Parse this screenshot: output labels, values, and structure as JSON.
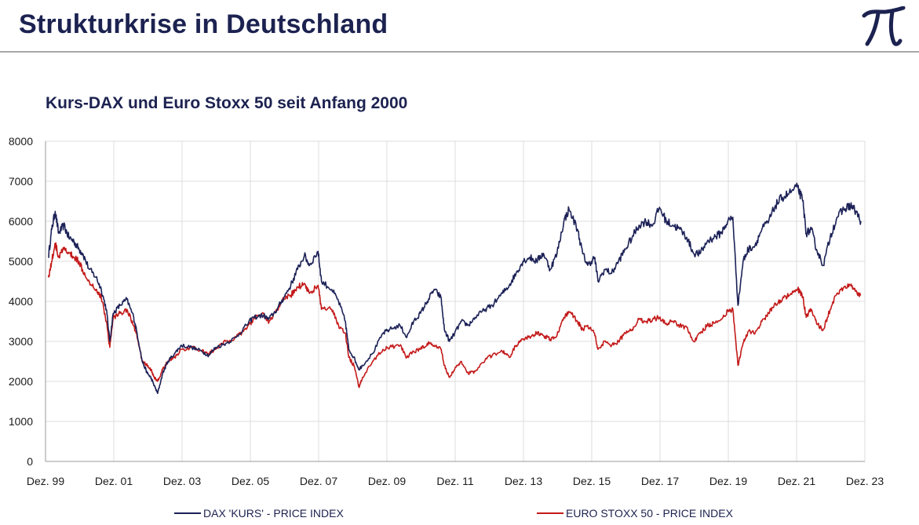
{
  "header": {
    "title": "Strukturkrise in Deutschland",
    "logo_icon": "pi-icon"
  },
  "colors": {
    "dax": "#1c2257",
    "stoxx": "#c41a1a",
    "grid": "#dcdcdc",
    "title": "#1c2250"
  },
  "chart_data": {
    "type": "line",
    "title": "Kurs-DAX und Euro Stoxx 50 seit Anfang 2000",
    "xlabel": "",
    "ylabel": "",
    "xlim": [
      1999.917,
      2023.917
    ],
    "ylim": [
      0,
      8000
    ],
    "y_ticks": [
      0,
      1000,
      2000,
      3000,
      4000,
      5000,
      6000,
      7000,
      8000
    ],
    "x_ticks": [
      {
        "x": 1999.917,
        "label": "Dez. 99"
      },
      {
        "x": 2001.917,
        "label": "Dez. 01"
      },
      {
        "x": 2003.917,
        "label": "Dez. 03"
      },
      {
        "x": 2005.917,
        "label": "Dez. 05"
      },
      {
        "x": 2007.917,
        "label": "Dez. 07"
      },
      {
        "x": 2009.917,
        "label": "Dez. 09"
      },
      {
        "x": 2011.917,
        "label": "Dez. 11"
      },
      {
        "x": 2013.917,
        "label": "Dez. 13"
      },
      {
        "x": 2015.917,
        "label": "Dez. 15"
      },
      {
        "x": 2017.917,
        "label": "Dez. 17"
      },
      {
        "x": 2019.917,
        "label": "Dez. 19"
      },
      {
        "x": 2021.917,
        "label": "Dez. 21"
      },
      {
        "x": 2023.917,
        "label": "Dez. 23"
      }
    ],
    "grid": true,
    "legend_position": "bottom",
    "series": [
      {
        "name": "DAX 'KURS' - PRICE INDEX",
        "color": "#1c2257",
        "points": [
          [
            2000.0,
            5100
          ],
          [
            2000.1,
            5800
          ],
          [
            2000.2,
            6250
          ],
          [
            2000.3,
            5700
          ],
          [
            2000.45,
            5900
          ],
          [
            2000.6,
            5600
          ],
          [
            2000.75,
            5500
          ],
          [
            2000.9,
            5300
          ],
          [
            2001.0,
            5200
          ],
          [
            2001.2,
            4800
          ],
          [
            2001.4,
            4600
          ],
          [
            2001.55,
            4300
          ],
          [
            2001.7,
            3800
          ],
          [
            2001.8,
            3000
          ],
          [
            2001.9,
            3700
          ],
          [
            2002.1,
            3900
          ],
          [
            2002.3,
            4050
          ],
          [
            2002.5,
            3600
          ],
          [
            2002.6,
            3200
          ],
          [
            2002.75,
            2500
          ],
          [
            2002.9,
            2200
          ],
          [
            2003.0,
            2100
          ],
          [
            2003.1,
            1900
          ],
          [
            2003.2,
            1700
          ],
          [
            2003.35,
            2200
          ],
          [
            2003.5,
            2500
          ],
          [
            2003.7,
            2700
          ],
          [
            2003.9,
            2900
          ],
          [
            2004.2,
            2850
          ],
          [
            2004.5,
            2750
          ],
          [
            2004.7,
            2650
          ],
          [
            2004.9,
            2850
          ],
          [
            2005.2,
            2950
          ],
          [
            2005.5,
            3100
          ],
          [
            2005.8,
            3400
          ],
          [
            2006.0,
            3600
          ],
          [
            2006.3,
            3650
          ],
          [
            2006.45,
            3550
          ],
          [
            2006.7,
            3800
          ],
          [
            2006.9,
            4100
          ],
          [
            2007.1,
            4400
          ],
          [
            2007.3,
            4800
          ],
          [
            2007.5,
            5150
          ],
          [
            2007.65,
            4900
          ],
          [
            2007.9,
            5250
          ],
          [
            2008.0,
            4500
          ],
          [
            2008.3,
            4300
          ],
          [
            2008.5,
            4000
          ],
          [
            2008.7,
            3500
          ],
          [
            2008.8,
            2800
          ],
          [
            2008.95,
            2600
          ],
          [
            2009.1,
            2300
          ],
          [
            2009.2,
            2400
          ],
          [
            2009.5,
            2700
          ],
          [
            2009.8,
            3200
          ],
          [
            2010.0,
            3300
          ],
          [
            2010.3,
            3400
          ],
          [
            2010.5,
            3100
          ],
          [
            2010.7,
            3500
          ],
          [
            2010.9,
            3700
          ],
          [
            2011.1,
            4000
          ],
          [
            2011.3,
            4300
          ],
          [
            2011.5,
            4100
          ],
          [
            2011.6,
            3300
          ],
          [
            2011.75,
            3000
          ],
          [
            2011.9,
            3200
          ],
          [
            2012.1,
            3500
          ],
          [
            2012.3,
            3400
          ],
          [
            2012.5,
            3600
          ],
          [
            2012.8,
            3800
          ],
          [
            2013.0,
            3900
          ],
          [
            2013.3,
            4200
          ],
          [
            2013.5,
            4400
          ],
          [
            2013.7,
            4700
          ],
          [
            2013.9,
            5000
          ],
          [
            2014.1,
            5100
          ],
          [
            2014.3,
            5000
          ],
          [
            2014.5,
            5200
          ],
          [
            2014.7,
            4800
          ],
          [
            2014.9,
            5200
          ],
          [
            2015.1,
            6000
          ],
          [
            2015.25,
            6300
          ],
          [
            2015.5,
            5800
          ],
          [
            2015.65,
            5200
          ],
          [
            2015.8,
            4900
          ],
          [
            2016.0,
            5100
          ],
          [
            2016.1,
            4500
          ],
          [
            2016.3,
            4800
          ],
          [
            2016.5,
            4700
          ],
          [
            2016.7,
            5000
          ],
          [
            2016.9,
            5300
          ],
          [
            2017.1,
            5600
          ],
          [
            2017.3,
            5900
          ],
          [
            2017.5,
            6000
          ],
          [
            2017.7,
            5900
          ],
          [
            2017.9,
            6350
          ],
          [
            2018.1,
            6000
          ],
          [
            2018.3,
            5900
          ],
          [
            2018.5,
            5800
          ],
          [
            2018.7,
            5600
          ],
          [
            2018.9,
            5200
          ],
          [
            2019.1,
            5200
          ],
          [
            2019.3,
            5500
          ],
          [
            2019.5,
            5600
          ],
          [
            2019.7,
            5700
          ],
          [
            2019.9,
            6000
          ],
          [
            2020.05,
            6100
          ],
          [
            2020.2,
            3900
          ],
          [
            2020.35,
            5000
          ],
          [
            2020.5,
            5300
          ],
          [
            2020.7,
            5400
          ],
          [
            2020.9,
            5800
          ],
          [
            2021.1,
            6000
          ],
          [
            2021.3,
            6400
          ],
          [
            2021.5,
            6600
          ],
          [
            2021.7,
            6700
          ],
          [
            2021.95,
            6850
          ],
          [
            2022.1,
            6500
          ],
          [
            2022.2,
            5700
          ],
          [
            2022.35,
            5800
          ],
          [
            2022.5,
            5300
          ],
          [
            2022.7,
            4900
          ],
          [
            2022.9,
            5600
          ],
          [
            2023.1,
            6100
          ],
          [
            2023.3,
            6300
          ],
          [
            2023.5,
            6400
          ],
          [
            2023.65,
            6250
          ],
          [
            2023.8,
            6000
          ]
        ]
      },
      {
        "name": "EURO STOXX 50 - PRICE INDEX",
        "color": "#c41a1a",
        "points": [
          [
            2000.0,
            4600
          ],
          [
            2000.1,
            5000
          ],
          [
            2000.2,
            5450
          ],
          [
            2000.3,
            5100
          ],
          [
            2000.45,
            5300
          ],
          [
            2000.6,
            5200
          ],
          [
            2000.75,
            5100
          ],
          [
            2000.9,
            5000
          ],
          [
            2001.0,
            4800
          ],
          [
            2001.2,
            4500
          ],
          [
            2001.4,
            4300
          ],
          [
            2001.55,
            4100
          ],
          [
            2001.7,
            3500
          ],
          [
            2001.8,
            2850
          ],
          [
            2001.9,
            3600
          ],
          [
            2002.1,
            3700
          ],
          [
            2002.3,
            3800
          ],
          [
            2002.5,
            3400
          ],
          [
            2002.6,
            3100
          ],
          [
            2002.75,
            2500
          ],
          [
            2002.9,
            2400
          ],
          [
            2003.0,
            2300
          ],
          [
            2003.1,
            2100
          ],
          [
            2003.2,
            2000
          ],
          [
            2003.35,
            2300
          ],
          [
            2003.5,
            2500
          ],
          [
            2003.7,
            2600
          ],
          [
            2003.9,
            2800
          ],
          [
            2004.2,
            2850
          ],
          [
            2004.5,
            2750
          ],
          [
            2004.7,
            2700
          ],
          [
            2004.9,
            2800
          ],
          [
            2005.2,
            3000
          ],
          [
            2005.5,
            3100
          ],
          [
            2005.8,
            3300
          ],
          [
            2006.0,
            3550
          ],
          [
            2006.3,
            3700
          ],
          [
            2006.45,
            3450
          ],
          [
            2006.7,
            3800
          ],
          [
            2006.9,
            4050
          ],
          [
            2007.1,
            4150
          ],
          [
            2007.3,
            4350
          ],
          [
            2007.5,
            4450
          ],
          [
            2007.65,
            4200
          ],
          [
            2007.9,
            4400
          ],
          [
            2008.0,
            3800
          ],
          [
            2008.3,
            3800
          ],
          [
            2008.5,
            3400
          ],
          [
            2008.7,
            3200
          ],
          [
            2008.8,
            2600
          ],
          [
            2008.95,
            2400
          ],
          [
            2009.1,
            1850
          ],
          [
            2009.2,
            2100
          ],
          [
            2009.5,
            2500
          ],
          [
            2009.8,
            2800
          ],
          [
            2010.0,
            2850
          ],
          [
            2010.3,
            2900
          ],
          [
            2010.5,
            2600
          ],
          [
            2010.7,
            2750
          ],
          [
            2010.9,
            2800
          ],
          [
            2011.1,
            2950
          ],
          [
            2011.3,
            2900
          ],
          [
            2011.5,
            2800
          ],
          [
            2011.6,
            2400
          ],
          [
            2011.75,
            2100
          ],
          [
            2011.9,
            2300
          ],
          [
            2012.1,
            2500
          ],
          [
            2012.3,
            2200
          ],
          [
            2012.5,
            2250
          ],
          [
            2012.8,
            2550
          ],
          [
            2013.0,
            2650
          ],
          [
            2013.3,
            2750
          ],
          [
            2013.5,
            2600
          ],
          [
            2013.7,
            2900
          ],
          [
            2013.9,
            3050
          ],
          [
            2014.1,
            3100
          ],
          [
            2014.3,
            3200
          ],
          [
            2014.5,
            3150
          ],
          [
            2014.7,
            3050
          ],
          [
            2014.9,
            3150
          ],
          [
            2015.1,
            3600
          ],
          [
            2015.25,
            3750
          ],
          [
            2015.5,
            3500
          ],
          [
            2015.65,
            3300
          ],
          [
            2015.8,
            3400
          ],
          [
            2016.0,
            3200
          ],
          [
            2016.1,
            2800
          ],
          [
            2016.3,
            3000
          ],
          [
            2016.5,
            2900
          ],
          [
            2016.7,
            3000
          ],
          [
            2016.9,
            3200
          ],
          [
            2017.1,
            3300
          ],
          [
            2017.3,
            3550
          ],
          [
            2017.5,
            3500
          ],
          [
            2017.7,
            3550
          ],
          [
            2017.9,
            3600
          ],
          [
            2018.1,
            3450
          ],
          [
            2018.3,
            3500
          ],
          [
            2018.5,
            3400
          ],
          [
            2018.7,
            3350
          ],
          [
            2018.9,
            3000
          ],
          [
            2019.1,
            3200
          ],
          [
            2019.3,
            3400
          ],
          [
            2019.5,
            3450
          ],
          [
            2019.7,
            3550
          ],
          [
            2019.9,
            3750
          ],
          [
            2020.05,
            3800
          ],
          [
            2020.2,
            2400
          ],
          [
            2020.35,
            2950
          ],
          [
            2020.5,
            3250
          ],
          [
            2020.7,
            3200
          ],
          [
            2020.9,
            3500
          ],
          [
            2021.1,
            3700
          ],
          [
            2021.3,
            3950
          ],
          [
            2021.5,
            4050
          ],
          [
            2021.7,
            4150
          ],
          [
            2021.95,
            4300
          ],
          [
            2022.1,
            4100
          ],
          [
            2022.2,
            3600
          ],
          [
            2022.35,
            3800
          ],
          [
            2022.5,
            3450
          ],
          [
            2022.7,
            3300
          ],
          [
            2022.9,
            3800
          ],
          [
            2023.1,
            4200
          ],
          [
            2023.3,
            4350
          ],
          [
            2023.5,
            4400
          ],
          [
            2023.65,
            4250
          ],
          [
            2023.8,
            4150
          ]
        ]
      }
    ]
  },
  "legend": {
    "dax_label": "DAX 'KURS' - PRICE INDEX",
    "stoxx_label": "EURO STOXX 50 - PRICE INDEX"
  }
}
